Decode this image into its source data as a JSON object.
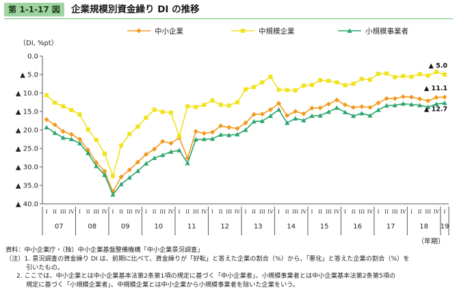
{
  "header": {
    "figure_no": "第 1-1-17 図",
    "title": "企業規模別資金繰り DI の推移"
  },
  "notes": {
    "source": "資料：中小企業庁・（独）中小企業基盤整備機構「中小企業景況調査」",
    "note1_a": "（注）1. 景況調査の資金繰り DI は、前期に比べて、資金繰りが「好転」と答えた企業の割合（%）から、「悪化」と答えた企業の割合（%）を",
    "note1_b": "引いたもの。",
    "note2_a": "2. ここでは、中小企業とは中小企業基本法第2条第1項の規定に基づく「中小企業者」、小規模事業者とは中小企業基本法第2条第5項の",
    "note2_b": "規定に基づく「小規模企業者」、中規模企業とは中小企業から小規模事業者を除いた企業をいう。"
  },
  "colors": {
    "sme": "#f39a1e",
    "medium": "#f2e21c",
    "small": "#2aa56d",
    "axis": "#555555"
  },
  "chart_data": {
    "type": "line",
    "ylabel": "（DI, %pt）",
    "xlabel": "（年期）",
    "ylim": [
      -40,
      0
    ],
    "y_ticks": [
      0,
      -5,
      -10,
      -15,
      -20,
      -25,
      -30,
      -35,
      -40
    ],
    "y_tick_labels": [
      "0.0",
      "▲ 5.0",
      "▲ 10.0",
      "▲ 15.0",
      "▲ 20.0",
      "▲ 25.0",
      "▲ 30.0",
      "▲ 35.0",
      "▲ 40.0"
    ],
    "quarter_labels": [
      "I",
      "II",
      "III",
      "IV"
    ],
    "years": [
      "07",
      "08",
      "09",
      "10",
      "11",
      "12",
      "13",
      "14",
      "15",
      "16",
      "17",
      "18",
      "19"
    ],
    "legend": {
      "placement": "top",
      "entries": [
        "中小企業",
        "中規模企業",
        "小規模事業者"
      ]
    },
    "series": [
      {
        "name": "中小企業",
        "key": "sme",
        "marker": "diamond",
        "values": [
          -17.2,
          -18.6,
          -20.4,
          -21.2,
          -22.5,
          -25.4,
          -28.8,
          -31.2,
          -36.7,
          -32.7,
          -30.8,
          -28.7,
          -26.6,
          -25.2,
          -23.1,
          -23.6,
          -22.1,
          -27.6,
          -20.4,
          -20.9,
          -20.6,
          -18.9,
          -19.3,
          -19.6,
          -18.1,
          -15.8,
          -15.7,
          -14.5,
          -12.8,
          -16.1,
          -15.0,
          -15.6,
          -14.1,
          -14.0,
          -13.0,
          -11.9,
          -13.2,
          -13.9,
          -13.7,
          -13.9,
          -12.7,
          -11.5,
          -11.5,
          -11.0,
          -11.1,
          -11.6,
          -12.1,
          -11.2,
          -11.1
        ]
      },
      {
        "name": "中規模企業",
        "key": "medium",
        "marker": "square",
        "values": [
          -10.6,
          -12.6,
          -13.6,
          -14.6,
          -15.8,
          -19.9,
          -22.7,
          -26.4,
          -32.5,
          -24.2,
          -21.1,
          -19.1,
          -16.7,
          -14.5,
          -15.1,
          -15.3,
          -21.7,
          -13.6,
          -13.8,
          -13.2,
          -12.0,
          -13.2,
          -13.4,
          -12.5,
          -9.0,
          -8.4,
          -7.1,
          -5.6,
          -9.1,
          -9.2,
          -9.3,
          -8.0,
          -7.8,
          -6.5,
          -6.7,
          -7.1,
          -7.9,
          -7.5,
          -6.2,
          -6.4,
          -4.8,
          -4.7,
          -5.7,
          -5.4,
          -5.6,
          -4.9,
          -5.3,
          -4.3,
          -5.0
        ]
      },
      {
        "name": "小規模事業者",
        "key": "small",
        "marker": "triangle",
        "values": [
          -19.3,
          -20.8,
          -22.1,
          -22.5,
          -23.6,
          -26.3,
          -29.8,
          -32.2,
          -37.5,
          -34.7,
          -32.9,
          -31.1,
          -29.1,
          -27.6,
          -26.8,
          -25.9,
          -25.5,
          -29.0,
          -22.6,
          -22.5,
          -22.4,
          -21.3,
          -21.4,
          -21.2,
          -20.0,
          -17.7,
          -17.6,
          -16.2,
          -14.5,
          -18.1,
          -16.9,
          -17.4,
          -16.2,
          -16.1,
          -15.1,
          -14.0,
          -15.2,
          -16.2,
          -15.5,
          -16.1,
          -14.6,
          -13.4,
          -13.3,
          -12.9,
          -13.1,
          -13.3,
          -13.8,
          -13.0,
          -12.7
        ]
      }
    ],
    "annotations": [
      {
        "series": "中規模企業",
        "text": "▲ 5.0"
      },
      {
        "series": "中小企業",
        "text": "▲ 11.1"
      },
      {
        "series": "小規模事業者",
        "text": "▲ 12.7"
      }
    ]
  }
}
